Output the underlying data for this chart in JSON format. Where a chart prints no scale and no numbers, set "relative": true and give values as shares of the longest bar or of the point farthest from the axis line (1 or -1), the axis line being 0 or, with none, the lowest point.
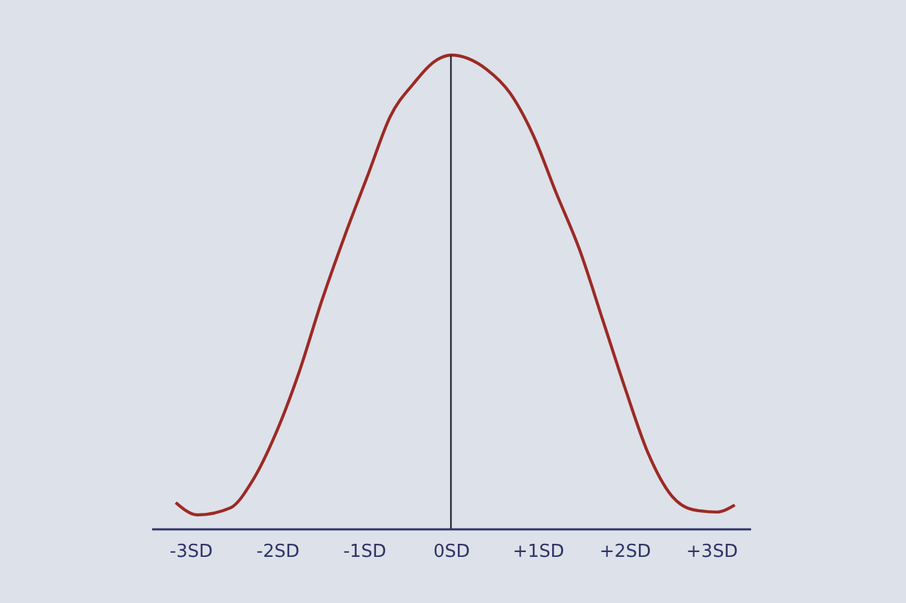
{
  "chart_data": {
    "type": "line",
    "relative": true,
    "x": [
      -3.17,
      -2.92,
      -2.54,
      -2.29,
      -2.02,
      -1.75,
      -1.49,
      -1.22,
      -0.95,
      -0.7,
      -0.43,
      -0.16,
      0,
      0.41,
      0.68,
      0.95,
      1.21,
      1.48,
      1.75,
      2.0,
      2.27,
      2.54,
      2.79,
      3.06,
      3.27
    ],
    "series": [
      {
        "color": "#9c2a24",
        "values": [
          0.055,
          0.029,
          0.044,
          0.1,
          0.2,
          0.33,
          0.48,
          0.62,
          0.75,
          0.87,
          0.94,
          0.99,
          1,
          0.97,
          0.92,
          0.83,
          0.71,
          0.59,
          0.44,
          0.3,
          0.16,
          0.07,
          0.04,
          0.035,
          0.05
        ]
      }
    ],
    "xlim": [
      -3.45,
      3.45
    ],
    "xticks": [
      {
        "value": -3,
        "label": "-3SD"
      },
      {
        "value": -2,
        "label": "-2SD"
      },
      {
        "value": -1,
        "label": "-1SD"
      },
      {
        "value": 0,
        "label": "0SD"
      },
      {
        "value": 1,
        "label": "+1SD"
      },
      {
        "value": 2,
        "label": "+2SD"
      },
      {
        "value": 3,
        "label": "+3SD"
      }
    ],
    "ref_lines": [
      {
        "axis": "x",
        "value": 0,
        "color": "#2a2a3a"
      }
    ]
  }
}
